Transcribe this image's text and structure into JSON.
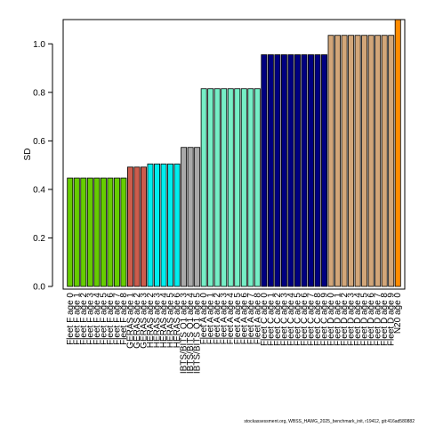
{
  "footer_text": "stockassessment.org, WBSS_HAWG_2025_benchmark_init, r19412, git:416ad580882",
  "chart_data": {
    "type": "bar",
    "ylabel": "SD",
    "ylim": [
      0,
      1.1
    ],
    "yticks": [
      0.0,
      0.2,
      0.4,
      0.6,
      0.8,
      1.0
    ],
    "ytick_labels": [
      "0.0",
      "0.2",
      "0.4",
      "0.6",
      "0.8",
      "1.0"
    ],
    "bar_border_color": "#000000",
    "categories": [
      "Fleet F age 0",
      "Fleet F age 1",
      "Fleet F age 2",
      "Fleet F age 3",
      "Fleet F age 4",
      "Fleet F age 5",
      "Fleet F age 6",
      "Fleet F age 7",
      "Fleet F age 8",
      "GERAS age 1",
      "GERAS age 2",
      "GERAS age 3",
      "HERAS age 2",
      "HERAS age 3",
      "HERAS age 4",
      "HERAS age 5",
      "HERAS age 6",
      "IBTS/BITS Q1 age 3",
      "IBTS/BITS Q1 age 4",
      "IBTS/BITS Q1 age 5",
      "Fleet A age 0",
      "Fleet A age 1",
      "Fleet A age 2",
      "Fleet A age 3",
      "Fleet A age 4",
      "Fleet A age 5",
      "Fleet A age 6",
      "Fleet A age 7",
      "Fleet A age 8",
      "Fleet C age 0",
      "Fleet C age 1",
      "Fleet C age 2",
      "Fleet C age 3",
      "Fleet C age 4",
      "Fleet C age 5",
      "Fleet C age 6",
      "Fleet C age 7",
      "Fleet C age 8",
      "Fleet C age 9",
      "Fleet D age 0",
      "Fleet D age 1",
      "Fleet D age 2",
      "Fleet D age 3",
      "Fleet D age 4",
      "Fleet D age 5",
      "Fleet D age 6",
      "Fleet D age 7",
      "Fleet D age 8",
      "Fleet D age 9",
      "N20 age 0"
    ],
    "values": [
      0.447,
      0.447,
      0.447,
      0.447,
      0.447,
      0.447,
      0.447,
      0.447,
      0.447,
      0.492,
      0.492,
      0.492,
      0.505,
      0.505,
      0.505,
      0.505,
      0.505,
      0.573,
      0.573,
      0.573,
      0.815,
      0.815,
      0.815,
      0.815,
      0.815,
      0.815,
      0.815,
      0.815,
      0.815,
      0.955,
      0.955,
      0.955,
      0.955,
      0.955,
      0.955,
      0.955,
      0.955,
      0.955,
      0.955,
      1.035,
      1.035,
      1.035,
      1.035,
      1.035,
      1.035,
      1.035,
      1.035,
      1.035,
      1.035,
      1.105
    ],
    "colors": [
      "#66cd00",
      "#66cd00",
      "#66cd00",
      "#66cd00",
      "#66cd00",
      "#66cd00",
      "#66cd00",
      "#66cd00",
      "#66cd00",
      "#cd5c4c",
      "#cd5c4c",
      "#cd5c4c",
      "#00eeee",
      "#00eeee",
      "#00eeee",
      "#00eeee",
      "#00eeee",
      "#a9a9a9",
      "#a9a9a9",
      "#a9a9a9",
      "#76eec6",
      "#76eec6",
      "#76eec6",
      "#76eec6",
      "#76eec6",
      "#76eec6",
      "#76eec6",
      "#76eec6",
      "#76eec6",
      "#000080",
      "#000080",
      "#000080",
      "#000080",
      "#000080",
      "#000080",
      "#000080",
      "#000080",
      "#000080",
      "#000080",
      "#d2a679",
      "#d2a679",
      "#d2a679",
      "#d2a679",
      "#d2a679",
      "#d2a679",
      "#d2a679",
      "#d2a679",
      "#d2a679",
      "#d2a679",
      "#ff8c00"
    ]
  }
}
